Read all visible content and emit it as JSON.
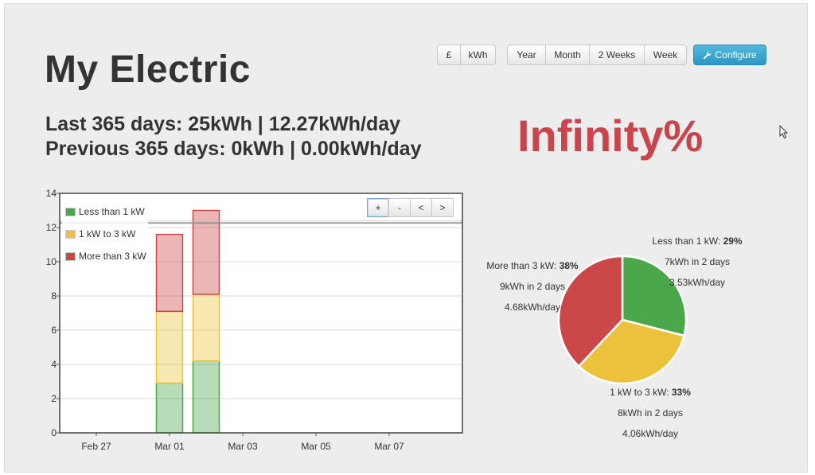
{
  "page": {
    "title": "My Electric",
    "stat_line1": "Last 365 days: 25kWh | 12.27kWh/day",
    "stat_line2": "Previous 365 days: 0kWh | 0.00kWh/day",
    "change_percent": "Infinity%"
  },
  "toolbar": {
    "unit_buttons": [
      "£",
      "kWh"
    ],
    "period_buttons": [
      "Year",
      "Month",
      "2 Weeks",
      "Week"
    ],
    "configure_label": "Configure"
  },
  "zoom_controls": [
    "+",
    "-",
    "<",
    ">"
  ],
  "colors": {
    "green": "#4aa84a",
    "yellow": "#ecc23c",
    "red": "#cc4848",
    "accent": "#2c98c4",
    "percent": "#c9444b"
  },
  "chart_data": [
    {
      "type": "bar",
      "stacked": true,
      "x": [
        "Mar 01",
        "Mar 02"
      ],
      "series": [
        {
          "name": "Less than 1 kW",
          "color": "#4aa84a",
          "values": [
            2.9,
            4.2
          ]
        },
        {
          "name": "1 kW to 3 kW",
          "color": "#ecc23c",
          "values": [
            4.2,
            3.9
          ]
        },
        {
          "name": "More than 3 kW",
          "color": "#cc4848",
          "values": [
            4.5,
            4.9
          ]
        }
      ],
      "xticks": [
        "Feb 27",
        "Mar 01",
        "Mar 03",
        "Mar 05",
        "Mar 07"
      ],
      "xlim": [
        "Feb 26",
        "Mar 09"
      ],
      "ylim": [
        0,
        14
      ],
      "yticks": [
        0,
        2,
        4,
        6,
        8,
        10,
        12,
        14
      ],
      "reference_line": 12.27,
      "grid": true,
      "legend_position": "top-left"
    },
    {
      "type": "pie",
      "slices": [
        {
          "label": "Less than 1 kW: ",
          "percent": "29%",
          "value": 29,
          "line2": "7kWh in 2 days",
          "line3": "3.53kWh/day",
          "color": "#4aa84a"
        },
        {
          "label": "1 kW to 3 kW: ",
          "percent": "33%",
          "value": 33,
          "line2": "8kWh in 2 days",
          "line3": "4.06kWh/day",
          "color": "#ecc23c"
        },
        {
          "label": "More than 3 kW: ",
          "percent": "38%",
          "value": 38,
          "line2": "9kWh in 2 days",
          "line3": "4.68kWh/day",
          "color": "#cc4848"
        }
      ]
    }
  ]
}
